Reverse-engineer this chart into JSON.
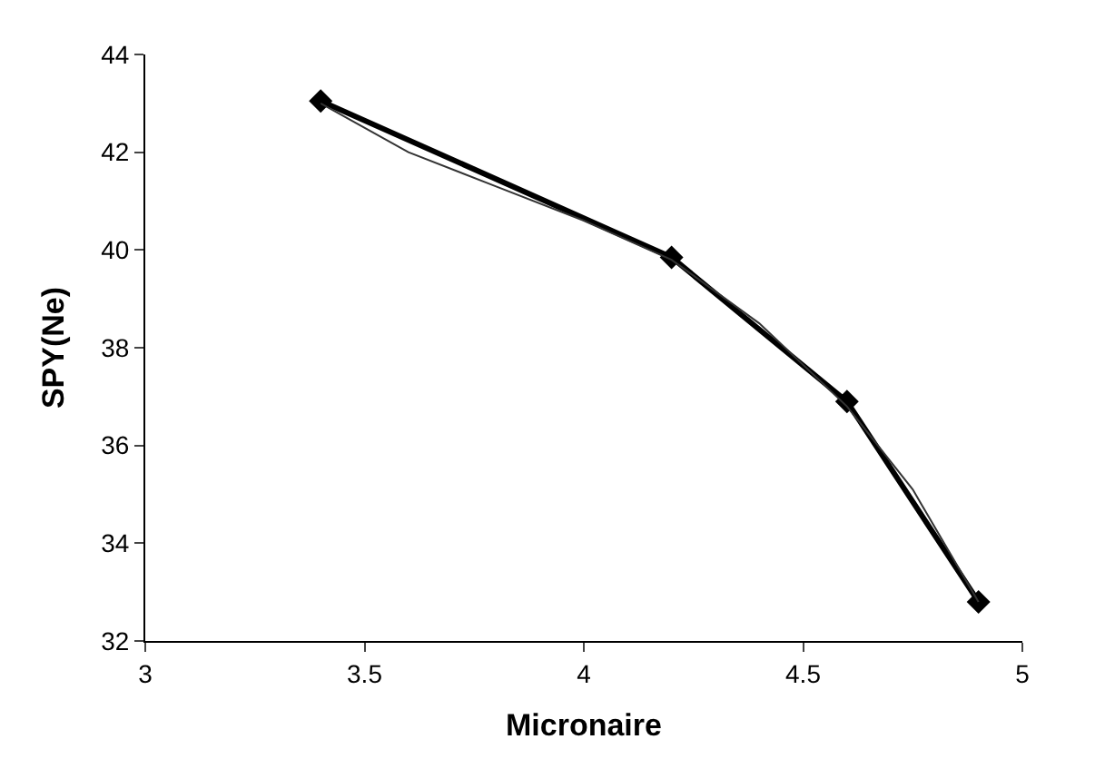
{
  "chart_data": {
    "type": "line",
    "xlabel": "Micronaire",
    "ylabel": "SPY(Ne)",
    "x": [
      3.4,
      4.2,
      4.6,
      4.9
    ],
    "series": [
      {
        "color": "#000000",
        "values": [
          43.05,
          39.85,
          36.9,
          32.8
        ],
        "marker": "diamond",
        "line_style": "solid"
      },
      {
        "type": "line",
        "color": "#333333",
        "x": [
          3.4,
          3.6,
          3.8,
          4.0,
          4.2,
          4.4,
          4.6,
          4.75,
          4.9
        ],
        "values": [
          43.0,
          42.0,
          41.3,
          40.6,
          39.8,
          38.5,
          36.8,
          35.1,
          32.8
        ],
        "marker": "none",
        "line_style": "solid"
      }
    ],
    "xlim": [
      3,
      5
    ],
    "xticks": [
      3,
      3.5,
      4,
      4.5,
      5
    ],
    "ylim": [
      32,
      44
    ],
    "yticks": [
      32,
      34,
      36,
      38,
      40,
      42,
      44
    ],
    "legend": false
  }
}
